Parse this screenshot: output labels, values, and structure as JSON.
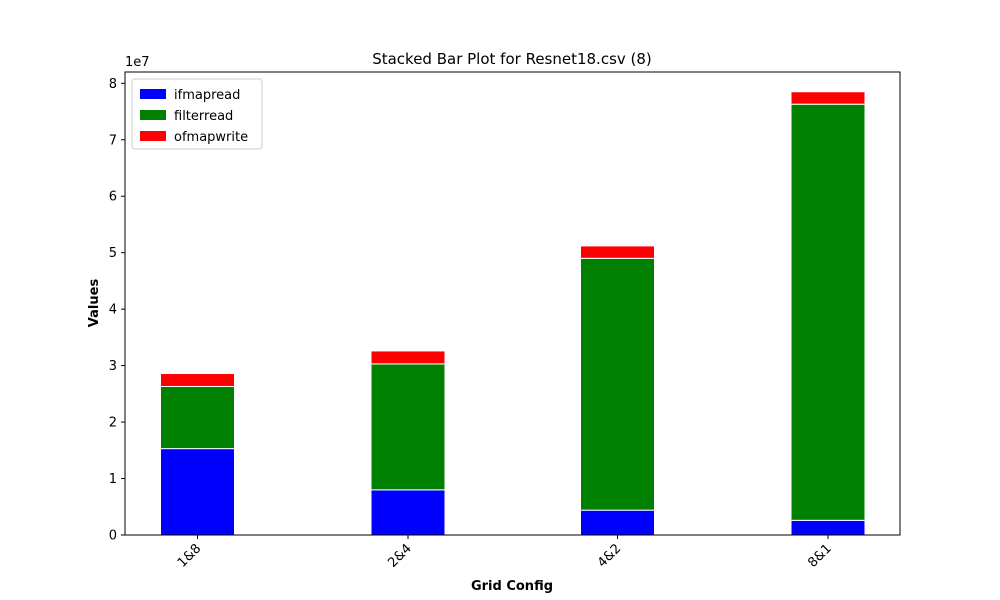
{
  "chart_data": {
    "type": "bar",
    "stacked": true,
    "title": "Stacked Bar Plot for Resnet18.csv (8)",
    "xlabel": "Grid Config",
    "ylabel": "Values",
    "y_scale_label": "1e7",
    "categories": [
      "1&8",
      "2&4",
      "4&2",
      "8&1"
    ],
    "y_ticks": [
      "0",
      "1",
      "2",
      "3",
      "4",
      "5",
      "6",
      "7",
      "8"
    ],
    "ylim": [
      0,
      82000000
    ],
    "legend_position": "upper left",
    "grid": false,
    "series": [
      {
        "name": "ifmapread",
        "color": "#0000ff",
        "values": [
          15300000,
          8000000,
          4400000,
          2600000
        ]
      },
      {
        "name": "filterread",
        "color": "#008000",
        "values": [
          11000000,
          22300000,
          44600000,
          73700000
        ]
      },
      {
        "name": "ofmapwrite",
        "color": "#ff0000",
        "values": [
          2300000,
          2300000,
          2200000,
          2200000
        ]
      }
    ]
  }
}
